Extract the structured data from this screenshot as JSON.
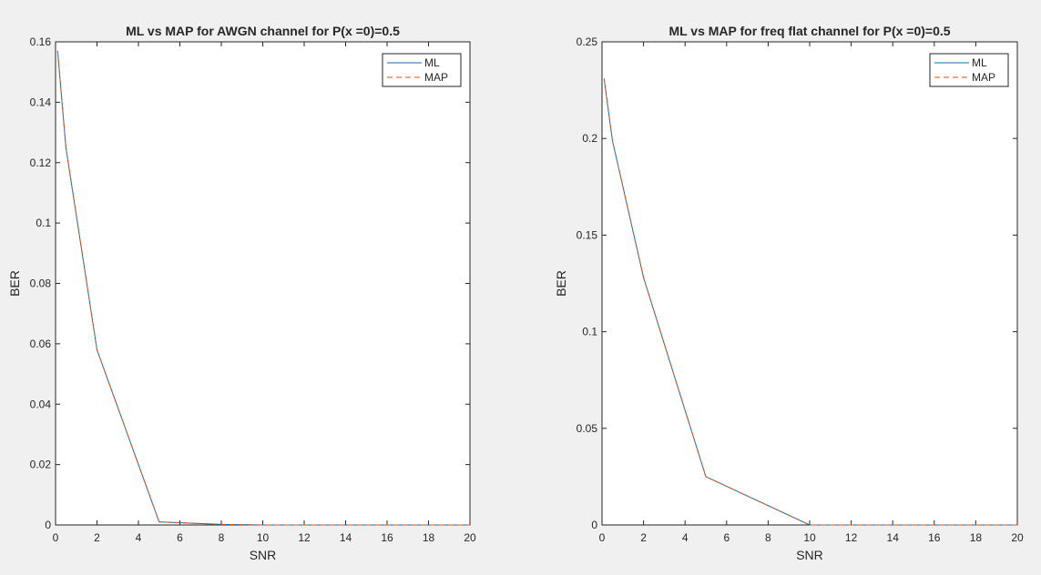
{
  "figure": {
    "background": "#f0f0f0"
  },
  "chart_data": [
    {
      "type": "line",
      "title": "ML vs MAP for AWGN channel for P(x =0)=0.5",
      "xlabel": "SNR",
      "ylabel": "BER",
      "xlim": [
        0,
        20
      ],
      "ylim": [
        0,
        0.16
      ],
      "xticks": [
        0,
        2,
        4,
        6,
        8,
        10,
        12,
        14,
        16,
        18,
        20
      ],
      "yticks": [
        0,
        0.02,
        0.04,
        0.06,
        0.08,
        0.1,
        0.12,
        0.14,
        0.16
      ],
      "ytick_labels": [
        "0",
        "0.02",
        "0.04",
        "0.06",
        "0.08",
        "0.1",
        "0.12",
        "0.14",
        "0.16"
      ],
      "x": [
        0.1,
        0.5,
        2,
        5,
        8,
        10,
        20
      ],
      "grid": false,
      "legend_position": "top-right",
      "series": [
        {
          "name": "ML",
          "color": "#0072bd",
          "style": "solid",
          "values": [
            0.157,
            0.125,
            0.058,
            0.001,
            0.0002,
            0.0,
            0.0
          ]
        },
        {
          "name": "MAP",
          "color": "#d95319",
          "style": "dashed",
          "values": [
            0.157,
            0.125,
            0.058,
            0.001,
            0.0002,
            0.0,
            0.0
          ]
        }
      ]
    },
    {
      "type": "line",
      "title": "ML vs MAP for freq flat channel for P(x =0)=0.5",
      "xlabel": "SNR",
      "ylabel": "BER",
      "xlim": [
        0,
        20
      ],
      "ylim": [
        0,
        0.25
      ],
      "xticks": [
        0,
        2,
        4,
        6,
        8,
        10,
        12,
        14,
        16,
        18,
        20
      ],
      "yticks": [
        0,
        0.05,
        0.1,
        0.15,
        0.2,
        0.25
      ],
      "ytick_labels": [
        "0",
        "0.05",
        "0.1",
        "0.15",
        "0.2",
        "0.25"
      ],
      "x": [
        0.1,
        0.5,
        2,
        5,
        10,
        20
      ],
      "grid": false,
      "legend_position": "top-right",
      "series": [
        {
          "name": "ML",
          "color": "#0072bd",
          "style": "solid",
          "values": [
            0.231,
            0.199,
            0.128,
            0.025,
            0.0,
            0.0
          ]
        },
        {
          "name": "MAP",
          "color": "#d95319",
          "style": "dashed",
          "values": [
            0.231,
            0.199,
            0.128,
            0.025,
            0.0,
            0.0
          ]
        }
      ]
    }
  ]
}
